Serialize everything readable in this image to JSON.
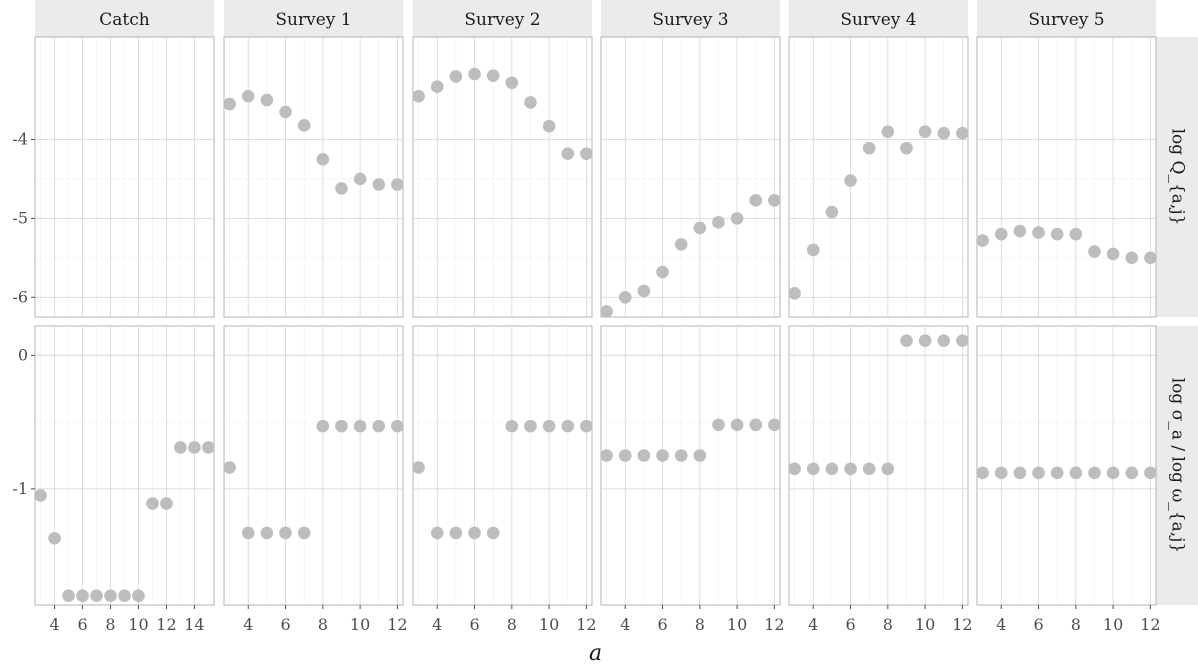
{
  "chart_data": {
    "type": "scatter",
    "xlabel": "a",
    "point_color": "#bdbdbd",
    "columns": [
      "Catch",
      "Survey 1",
      "Survey 2",
      "Survey 3",
      "Survey 4",
      "Survey 5"
    ],
    "rows": [
      {
        "label": "log Q_{a,j}",
        "ylim": [
          -6.25,
          -2.7
        ],
        "yticks": [
          -6,
          -5,
          -4
        ],
        "tick_labels": [
          "-6",
          "-5",
          "-4"
        ]
      },
      {
        "label": "log σ_a / log ω_{a,j}",
        "ylim": [
          -1.87,
          0.22
        ],
        "yticks": [
          -1,
          0
        ],
        "tick_labels": [
          "-1",
          "0"
        ]
      }
    ],
    "panel_xaxes": [
      {
        "xlim": [
          2.6,
          15.4
        ],
        "xticks": [
          4,
          6,
          8,
          10,
          12,
          14
        ],
        "tick_labels": [
          "4",
          "6",
          "8",
          "10",
          "12",
          "14"
        ]
      },
      {
        "xlim": [
          2.7,
          12.3
        ],
        "xticks": [
          4,
          6,
          8,
          10,
          12
        ],
        "tick_labels": [
          "4",
          "6",
          "8",
          "10",
          "12"
        ]
      },
      {
        "xlim": [
          2.7,
          12.3
        ],
        "xticks": [
          4,
          6,
          8,
          10,
          12
        ],
        "tick_labels": [
          "4",
          "6",
          "8",
          "10",
          "12"
        ]
      },
      {
        "xlim": [
          2.7,
          12.3
        ],
        "xticks": [
          4,
          6,
          8,
          10,
          12
        ],
        "tick_labels": [
          "4",
          "6",
          "8",
          "10",
          "12"
        ]
      },
      {
        "xlim": [
          2.7,
          12.3
        ],
        "xticks": [
          4,
          6,
          8,
          10,
          12
        ],
        "tick_labels": [
          "4",
          "6",
          "8",
          "10",
          "12"
        ]
      },
      {
        "xlim": [
          2.7,
          12.3
        ],
        "xticks": [
          4,
          6,
          8,
          10,
          12
        ],
        "tick_labels": [
          "4",
          "6",
          "8",
          "10",
          "12"
        ]
      }
    ],
    "series": [
      {
        "column": "Catch",
        "row": 0,
        "x": [],
        "y": []
      },
      {
        "column": "Survey 1",
        "row": 0,
        "x": [
          3,
          4,
          5,
          6,
          7,
          8,
          9,
          10,
          11,
          12
        ],
        "y": [
          -3.55,
          -3.45,
          -3.5,
          -3.65,
          -3.82,
          -4.25,
          -4.62,
          -4.5,
          -4.57,
          -4.57
        ]
      },
      {
        "column": "Survey 2",
        "row": 0,
        "x": [
          3,
          4,
          5,
          6,
          7,
          8,
          9,
          10,
          11,
          12
        ],
        "y": [
          -3.45,
          -3.33,
          -3.2,
          -3.17,
          -3.19,
          -3.28,
          -3.53,
          -3.83,
          -4.18,
          -4.18
        ]
      },
      {
        "column": "Survey 3",
        "row": 0,
        "x": [
          3,
          4,
          5,
          6,
          7,
          8,
          9,
          10,
          11,
          12
        ],
        "y": [
          -6.18,
          -6.0,
          -5.92,
          -5.68,
          -5.33,
          -5.12,
          -5.05,
          -5.0,
          -4.77,
          -4.77
        ]
      },
      {
        "column": "Survey 4",
        "row": 0,
        "x": [
          3,
          4,
          5,
          6,
          7,
          8,
          9,
          10,
          11,
          12
        ],
        "y": [
          -5.95,
          -5.4,
          -4.92,
          -4.52,
          -4.11,
          -3.9,
          -4.11,
          -3.9,
          -3.92,
          -3.92
        ]
      },
      {
        "column": "Survey 5",
        "row": 0,
        "x": [
          3,
          4,
          5,
          6,
          7,
          8,
          9,
          10,
          11,
          12
        ],
        "y": [
          -5.28,
          -5.2,
          -5.16,
          -5.18,
          -5.2,
          -5.2,
          -5.42,
          -5.45,
          -5.5,
          -5.5
        ]
      },
      {
        "column": "Catch",
        "row": 1,
        "x": [
          3,
          4,
          5,
          6,
          7,
          8,
          9,
          10,
          11,
          12,
          13,
          14,
          15
        ],
        "y": [
          -1.05,
          -1.37,
          -1.8,
          -1.8,
          -1.8,
          -1.8,
          -1.8,
          -1.8,
          -1.11,
          -1.11,
          -0.69,
          -0.69,
          -0.69
        ]
      },
      {
        "column": "Survey 1",
        "row": 1,
        "x": [
          3,
          4,
          5,
          6,
          7,
          8,
          9,
          10,
          11,
          12
        ],
        "y": [
          -0.84,
          -1.33,
          -1.33,
          -1.33,
          -1.33,
          -0.53,
          -0.53,
          -0.53,
          -0.53,
          -0.53
        ]
      },
      {
        "column": "Survey 2",
        "row": 1,
        "x": [
          3,
          4,
          5,
          6,
          7,
          8,
          9,
          10,
          11,
          12
        ],
        "y": [
          -0.84,
          -1.33,
          -1.33,
          -1.33,
          -1.33,
          -0.53,
          -0.53,
          -0.53,
          -0.53,
          -0.53
        ]
      },
      {
        "column": "Survey 3",
        "row": 1,
        "x": [
          3,
          4,
          5,
          6,
          7,
          8,
          9,
          10,
          11,
          12
        ],
        "y": [
          -0.75,
          -0.75,
          -0.75,
          -0.75,
          -0.75,
          -0.75,
          -0.52,
          -0.52,
          -0.52,
          -0.52
        ]
      },
      {
        "column": "Survey 4",
        "row": 1,
        "x": [
          3,
          4,
          5,
          6,
          7,
          8,
          9,
          10,
          11,
          12
        ],
        "y": [
          -0.85,
          -0.85,
          -0.85,
          -0.85,
          -0.85,
          -0.85,
          0.11,
          0.11,
          0.11,
          0.11
        ]
      },
      {
        "column": "Survey 5",
        "row": 1,
        "x": [
          3,
          4,
          5,
          6,
          7,
          8,
          9,
          10,
          11,
          12
        ],
        "y": [
          -0.88,
          -0.88,
          -0.88,
          -0.88,
          -0.88,
          -0.88,
          -0.88,
          -0.88,
          -0.88,
          -0.88
        ]
      }
    ]
  }
}
